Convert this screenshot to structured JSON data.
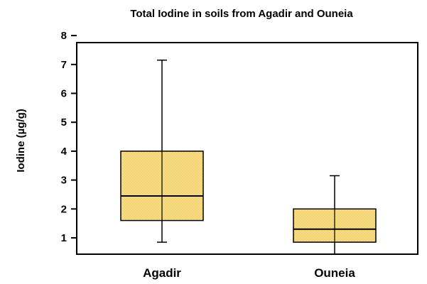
{
  "chart_data": {
    "type": "box",
    "title": "Total Iodine in soils from Agadir and Ouneia",
    "xlabel": "",
    "ylabel": "Iodine (µg/g)",
    "ylim": [
      0.5,
      8
    ],
    "yticks": [
      1,
      2,
      3,
      4,
      5,
      6,
      7,
      8
    ],
    "grid": false,
    "categories": [
      "Agadir",
      "Ouneia"
    ],
    "boxes": [
      {
        "category": "Agadir",
        "min": 0.85,
        "q1": 1.6,
        "median": 2.45,
        "q3": 4.0,
        "max": 7.15
      },
      {
        "category": "Ouneia",
        "min": 0.3,
        "q1": 0.85,
        "median": 1.3,
        "q3": 2.0,
        "max": 3.15
      }
    ],
    "colors": {
      "box_fill": "#f7dc82",
      "stroke": "#000000",
      "pattern_dot": "#e8c866"
    }
  }
}
